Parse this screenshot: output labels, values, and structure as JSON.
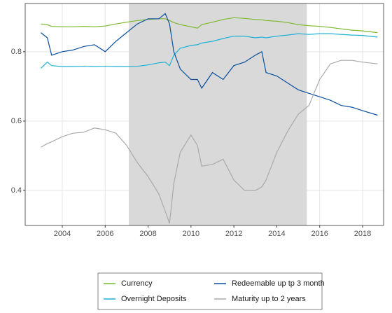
{
  "chart_data": {
    "type": "line",
    "x": [
      2003.0,
      2003.3,
      2003.5,
      2004,
      2004.5,
      2005,
      2005.5,
      2006,
      2006.5,
      2007,
      2007.5,
      2008,
      2008.5,
      2008.8,
      2009.0,
      2009.2,
      2009.5,
      2010,
      2010.3,
      2010.5,
      2011,
      2011.5,
      2012,
      2012.5,
      2013,
      2013.3,
      2013.5,
      2014,
      2014.5,
      2015,
      2015.5,
      2016,
      2016.5,
      2017,
      2017.5,
      2018,
      2018.7
    ],
    "series": [
      {
        "name": "Currency",
        "color": "#7cb82f",
        "values": [
          0.88,
          0.878,
          0.873,
          0.872,
          0.872,
          0.873,
          0.872,
          0.874,
          0.88,
          0.885,
          0.89,
          0.893,
          0.895,
          0.895,
          0.89,
          0.884,
          0.878,
          0.872,
          0.868,
          0.878,
          0.885,
          0.893,
          0.898,
          0.896,
          0.893,
          0.892,
          0.89,
          0.888,
          0.884,
          0.878,
          0.875,
          0.873,
          0.87,
          0.866,
          0.862,
          0.86,
          0.855
        ]
      },
      {
        "name": "Overnight Deposits",
        "color": "#1eb1d6",
        "values": [
          0.752,
          0.77,
          0.76,
          0.757,
          0.757,
          0.758,
          0.757,
          0.758,
          0.757,
          0.757,
          0.758,
          0.762,
          0.768,
          0.77,
          0.76,
          0.79,
          0.81,
          0.818,
          0.82,
          0.825,
          0.83,
          0.838,
          0.845,
          0.845,
          0.84,
          0.842,
          0.84,
          0.845,
          0.848,
          0.852,
          0.85,
          0.852,
          0.852,
          0.85,
          0.848,
          0.847,
          0.842
        ]
      },
      {
        "name": "Redeemable up tp 3 month",
        "color": "#0a4f9e",
        "values": [
          0.855,
          0.84,
          0.79,
          0.8,
          0.805,
          0.815,
          0.82,
          0.8,
          0.83,
          0.855,
          0.88,
          0.895,
          0.895,
          0.91,
          0.88,
          0.8,
          0.75,
          0.72,
          0.72,
          0.695,
          0.74,
          0.72,
          0.76,
          0.77,
          0.79,
          0.8,
          0.74,
          0.73,
          0.71,
          0.69,
          0.68,
          0.67,
          0.66,
          0.645,
          0.64,
          0.63,
          0.617
        ]
      },
      {
        "name": "Maturity up to 2 years",
        "color": "#aaaaaa",
        "values": [
          0.525,
          0.535,
          0.54,
          0.555,
          0.565,
          0.568,
          0.58,
          0.575,
          0.565,
          0.53,
          0.48,
          0.44,
          0.39,
          0.34,
          0.305,
          0.42,
          0.51,
          0.56,
          0.53,
          0.47,
          0.475,
          0.49,
          0.43,
          0.4,
          0.4,
          0.41,
          0.43,
          0.51,
          0.57,
          0.62,
          0.645,
          0.72,
          0.765,
          0.775,
          0.775,
          0.77,
          0.765
        ]
      }
    ],
    "shade": [
      2007.1,
      2015.4
    ],
    "xlim": [
      2002.27,
      2018.98
    ],
    "xticks": [
      2004,
      2006,
      2008,
      2010,
      2012,
      2014,
      2016,
      2018
    ],
    "ylim": [
      0.299,
      0.939
    ],
    "yticks": [
      0.4,
      0.6,
      0.8
    ],
    "grid": true,
    "legend": "bottom"
  }
}
